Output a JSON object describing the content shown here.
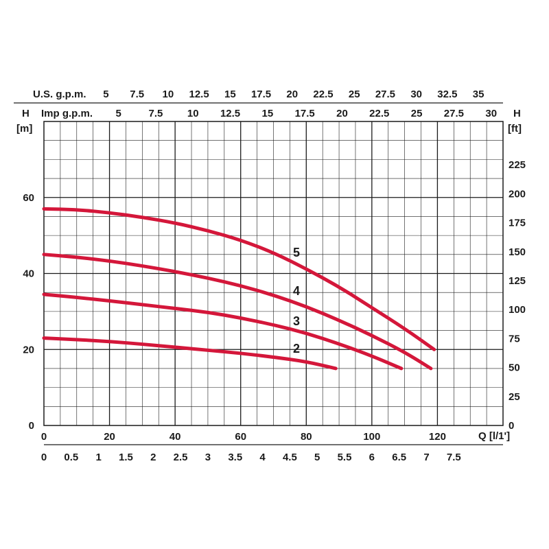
{
  "chart_data": {
    "type": "line",
    "x_axis": {
      "label": "Q [l/1']",
      "range": [
        0,
        140
      ],
      "ticks": [
        "0",
        "20",
        "40",
        "60",
        "80",
        "100",
        "120"
      ]
    },
    "y_axis_left": {
      "label": "H",
      "unit": "[m]",
      "range": [
        0,
        80
      ],
      "ticks": [
        "0",
        "20",
        "40",
        "60"
      ]
    },
    "y_axis_right": {
      "label": "H",
      "unit": "[ft]",
      "ticks": [
        "0",
        "25",
        "50",
        "75",
        "100",
        "125",
        "150",
        "175",
        "200",
        "225"
      ]
    },
    "top_axis_usgpm": {
      "label": "U.S. g.p.m.",
      "ticks": [
        "5",
        "7.5",
        "10",
        "12.5",
        "15",
        "17.5",
        "20",
        "22.5",
        "25",
        "27.5",
        "30",
        "32.5",
        "35"
      ]
    },
    "top_axis_impgpm": {
      "label": "Imp g.p.m.",
      "ticks": [
        "5",
        "7.5",
        "10",
        "12.5",
        "15",
        "17.5",
        "20",
        "22.5",
        "25",
        "27.5",
        "30"
      ]
    },
    "bottom_axis_m3h": {
      "ticks": [
        "0",
        "0.5",
        "1",
        "1.5",
        "2",
        "2.5",
        "3",
        "3.5",
        "4",
        "4.5",
        "5",
        "5.5",
        "6",
        "6.5",
        "7",
        "7.5"
      ]
    },
    "grid": true,
    "series": [
      {
        "name": "5",
        "x": [
          0,
          10,
          20,
          30,
          40,
          50,
          60,
          70,
          80,
          90,
          100,
          110,
          119
        ],
        "y": [
          57,
          56.8,
          56,
          54.8,
          53.3,
          51.3,
          48.8,
          45.5,
          41.2,
          36.5,
          31,
          25.5,
          20
        ]
      },
      {
        "name": "4",
        "x": [
          0,
          10,
          20,
          30,
          40,
          50,
          60,
          70,
          80,
          90,
          100,
          110,
          118
        ],
        "y": [
          45,
          44.3,
          43.3,
          42,
          40.5,
          38.8,
          36.8,
          34.3,
          31.3,
          27.7,
          23.7,
          19.3,
          15
        ]
      },
      {
        "name": "3",
        "x": [
          0,
          10,
          20,
          30,
          40,
          50,
          60,
          70,
          80,
          90,
          100,
          109
        ],
        "y": [
          34.5,
          33.7,
          32.8,
          31.8,
          30.8,
          29.8,
          28.3,
          26.5,
          24.3,
          21.5,
          18.3,
          15
        ]
      },
      {
        "name": "2",
        "x": [
          0,
          10,
          20,
          30,
          40,
          50,
          60,
          70,
          80,
          89
        ],
        "y": [
          23,
          22.6,
          22.1,
          21.4,
          20.6,
          19.8,
          19,
          18,
          16.8,
          15
        ]
      }
    ],
    "colors": {
      "curve": "#d4173a",
      "grid": "#1a1a1a"
    }
  }
}
